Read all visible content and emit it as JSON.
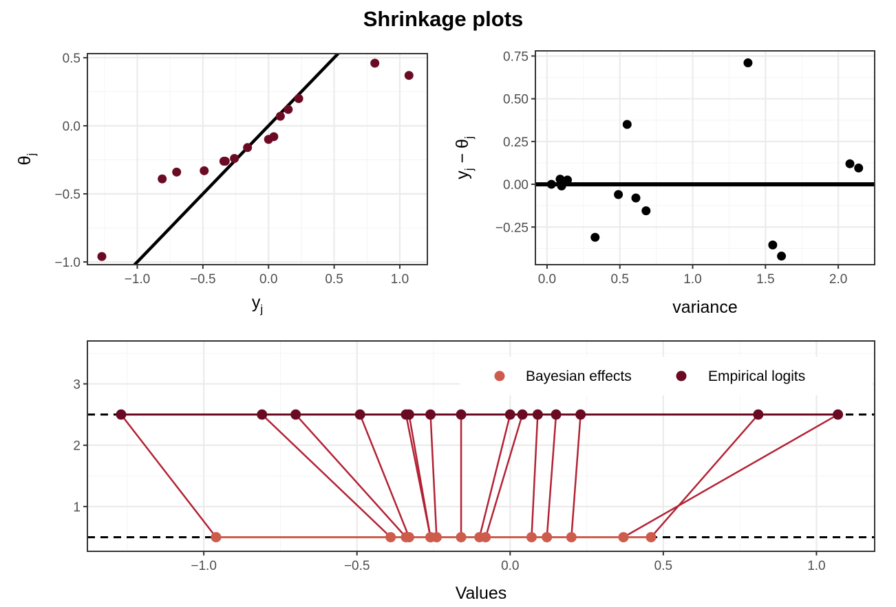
{
  "title": "Shrinkage plots",
  "colors": {
    "empirical": "#6b0a23",
    "bayes": "#cd5c4c",
    "link": "#b22234",
    "black": "#000000"
  },
  "chart_data": [
    {
      "name": "theta-vs-y",
      "type": "scatter",
      "xlabel": "y",
      "xlabel_sub": "j",
      "ylabel": "θ",
      "ylabel_sub": "j",
      "xlim": [
        -1.38,
        1.21
      ],
      "ylim": [
        -1.02,
        0.53
      ],
      "xticks": [
        -1.0,
        -0.5,
        0.0,
        0.5,
        1.0
      ],
      "xtick_labels": [
        "−1.0",
        "−0.5",
        "0.0",
        "0.5",
        "1.0"
      ],
      "yticks": [
        -1.0,
        -0.5,
        0.0,
        0.5
      ],
      "ytick_labels": [
        "−1.0",
        "−0.5",
        "0.0",
        "0.5"
      ],
      "reference_line": {
        "slope": 1,
        "intercept": 0
      },
      "points": [
        {
          "x": -1.27,
          "y": -0.96
        },
        {
          "x": -0.81,
          "y": -0.39
        },
        {
          "x": -0.7,
          "y": -0.34
        },
        {
          "x": -0.49,
          "y": -0.33
        },
        {
          "x": -0.34,
          "y": -0.26
        },
        {
          "x": -0.33,
          "y": -0.26
        },
        {
          "x": -0.26,
          "y": -0.24
        },
        {
          "x": -0.16,
          "y": -0.16
        },
        {
          "x": 0.0,
          "y": -0.1
        },
        {
          "x": 0.04,
          "y": -0.08
        },
        {
          "x": 0.09,
          "y": 0.07
        },
        {
          "x": 0.15,
          "y": 0.12
        },
        {
          "x": 0.23,
          "y": 0.2
        },
        {
          "x": 0.81,
          "y": 0.46
        },
        {
          "x": 1.07,
          "y": 0.37
        }
      ]
    },
    {
      "name": "residual-vs-variance",
      "type": "scatter",
      "xlabel": "variance",
      "ylabel": "y",
      "ylabel_sub": "j",
      "ylabel_mid": " − θ",
      "ylabel_sub2": "j",
      "xlim": [
        -0.08,
        2.25
      ],
      "ylim": [
        -0.47,
        0.78
      ],
      "xticks": [
        0.0,
        0.5,
        1.0,
        1.5,
        2.0
      ],
      "xtick_labels": [
        "0.0",
        "0.5",
        "1.0",
        "1.5",
        "2.0"
      ],
      "yticks": [
        -0.25,
        0.0,
        0.25,
        0.5,
        0.75
      ],
      "ytick_labels": [
        "−0.25",
        "0.00",
        "0.25",
        "0.50",
        "0.75"
      ],
      "hline": 0,
      "points": [
        {
          "x": 0.03,
          "y": 0.0
        },
        {
          "x": 0.09,
          "y": 0.03
        },
        {
          "x": 0.1,
          "y": 0.02
        },
        {
          "x": 0.1,
          "y": -0.01
        },
        {
          "x": 0.14,
          "y": 0.025
        },
        {
          "x": 0.33,
          "y": -0.31
        },
        {
          "x": 0.49,
          "y": -0.06
        },
        {
          "x": 0.55,
          "y": 0.35
        },
        {
          "x": 0.61,
          "y": -0.08
        },
        {
          "x": 0.68,
          "y": -0.155
        },
        {
          "x": 1.38,
          "y": 0.71
        },
        {
          "x": 1.55,
          "y": -0.355
        },
        {
          "x": 1.61,
          "y": -0.42
        },
        {
          "x": 2.08,
          "y": 0.12
        },
        {
          "x": 2.14,
          "y": 0.095
        }
      ]
    },
    {
      "name": "shrinkage-links",
      "type": "scatter",
      "xlabel": "Values",
      "xlim": [
        -1.38,
        1.19
      ],
      "ylim": [
        0.27,
        3.7
      ],
      "xticks": [
        -1.0,
        -0.5,
        0.0,
        0.5,
        1.0
      ],
      "xtick_labels": [
        "−1.0",
        "−0.5",
        "0.0",
        "0.5",
        "1.0"
      ],
      "yticks": [
        1,
        2,
        3
      ],
      "ytick_labels": [
        "1",
        "2",
        "3"
      ],
      "empirical_level": 2.5,
      "bayes_level": 0.5,
      "legend_position": "top-right",
      "legend": [
        {
          "label": "Bayesian effects",
          "key": "bayes"
        },
        {
          "label": "Empirical logits",
          "key": "empirical"
        }
      ],
      "empirical": [
        -1.27,
        -0.81,
        -0.7,
        -0.49,
        -0.34,
        -0.33,
        -0.26,
        -0.16,
        0.0,
        0.04,
        0.09,
        0.15,
        0.23,
        0.81,
        1.07
      ],
      "bayes": [
        -0.96,
        -0.39,
        -0.34,
        -0.33,
        -0.26,
        -0.26,
        -0.24,
        -0.16,
        -0.1,
        -0.08,
        0.07,
        0.12,
        0.2,
        0.46,
        0.37
      ]
    }
  ]
}
